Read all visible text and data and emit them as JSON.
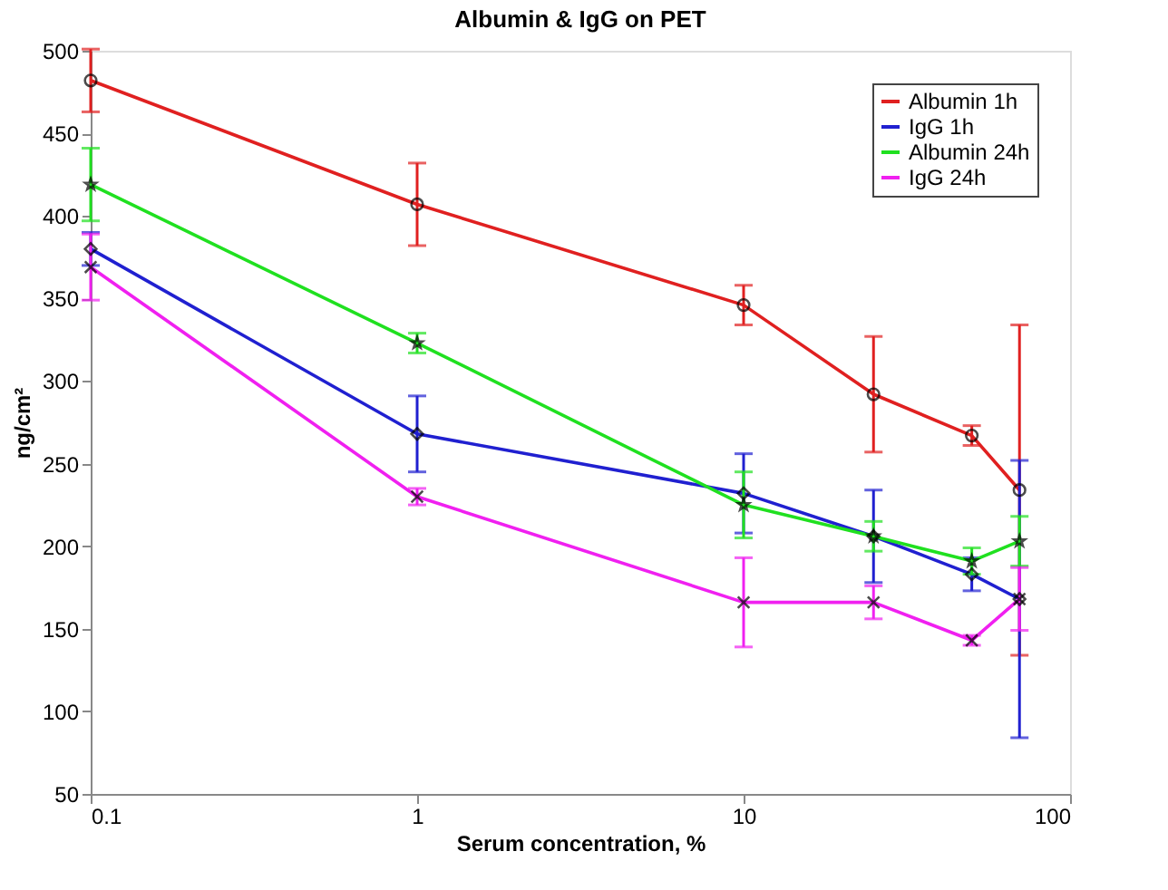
{
  "chart_data": {
    "type": "line",
    "title": "Albumin & IgG on PET",
    "xlabel": "Serum concentration, %",
    "ylabel": "ng/cm²",
    "x": [
      0.1,
      1,
      10,
      25,
      50,
      70
    ],
    "series": [
      {
        "name": "Albumin 1h",
        "color": "#e02020",
        "marker": "circle",
        "values": [
          482,
          407,
          346,
          292,
          267,
          234
        ],
        "errors": [
          19,
          25,
          12,
          35,
          6,
          100
        ]
      },
      {
        "name": "IgG 1h",
        "color": "#2020d0",
        "marker": "diamond",
        "values": [
          380,
          268,
          232,
          206,
          183,
          168
        ],
        "errors": [
          10,
          23,
          24,
          28,
          10,
          84
        ]
      },
      {
        "name": "Albumin 24h",
        "color": "#20e020",
        "marker": "star",
        "values": [
          419,
          323,
          225,
          206,
          191,
          203
        ],
        "errors": [
          22,
          6,
          20,
          9,
          8,
          15
        ]
      },
      {
        "name": "IgG 24h",
        "color": "#f020f0",
        "marker": "cross",
        "values": [
          369,
          230,
          166,
          166,
          143,
          168
        ],
        "errors": [
          20,
          5,
          27,
          10,
          3,
          19
        ]
      }
    ],
    "log": "x",
    "xlim": [
      0.1,
      100
    ],
    "xticks": [
      0.1,
      1,
      10,
      100
    ],
    "ylim": [
      50,
      500
    ],
    "yticks": [
      50,
      100,
      150,
      200,
      250,
      300,
      350,
      400,
      450,
      500
    ],
    "grid": false,
    "legend": "top right",
    "line_style": "solid"
  }
}
